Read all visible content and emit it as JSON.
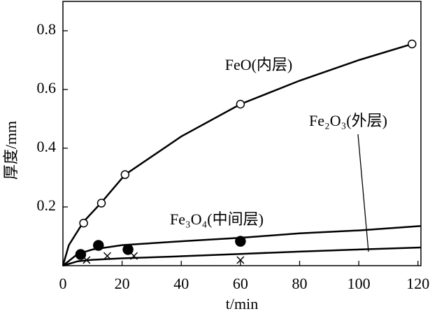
{
  "chart_data": {
    "type": "scatter",
    "x_label": "t/min",
    "y_label": "厚度/mm",
    "xlim": [
      0,
      121
    ],
    "ylim": [
      0,
      0.9
    ],
    "xticks": [
      0,
      20,
      40,
      60,
      80,
      100,
      120
    ],
    "yticks": [
      0.2,
      0.4,
      0.6,
      0.8
    ],
    "series": [
      {
        "name": "FeO(内层)",
        "marker": "open-circle",
        "x": [
          7,
          13,
          21,
          60,
          118
        ],
        "values": [
          0.145,
          0.213,
          0.31,
          0.55,
          0.755
        ]
      },
      {
        "name": "Fe₃O₄(中间层)",
        "marker": "filled-circle",
        "x": [
          6,
          12,
          22,
          60
        ],
        "values": [
          0.038,
          0.069,
          0.055,
          0.083
        ]
      },
      {
        "name": "Fe₂O₃(外层)",
        "marker": "cross",
        "x": [
          8,
          15,
          24,
          60
        ],
        "values": [
          0.019,
          0.033,
          0.033,
          0.019
        ]
      }
    ],
    "curves": [
      {
        "x": [
          0,
          2,
          7,
          13,
          21,
          40,
          60,
          80,
          100,
          118
        ],
        "values": [
          0,
          0.07,
          0.15,
          0.215,
          0.31,
          0.44,
          0.55,
          0.63,
          0.7,
          0.755
        ]
      },
      {
        "x": [
          0,
          5,
          10,
          20,
          40,
          60,
          80,
          100,
          121
        ],
        "values": [
          0,
          0.04,
          0.055,
          0.07,
          0.083,
          0.095,
          0.11,
          0.12,
          0.135
        ]
      },
      {
        "x": [
          0,
          5,
          10,
          20,
          40,
          60,
          80,
          100,
          121
        ],
        "values": [
          0,
          0.015,
          0.02,
          0.025,
          0.032,
          0.04,
          0.048,
          0.055,
          0.062
        ]
      }
    ]
  }
}
